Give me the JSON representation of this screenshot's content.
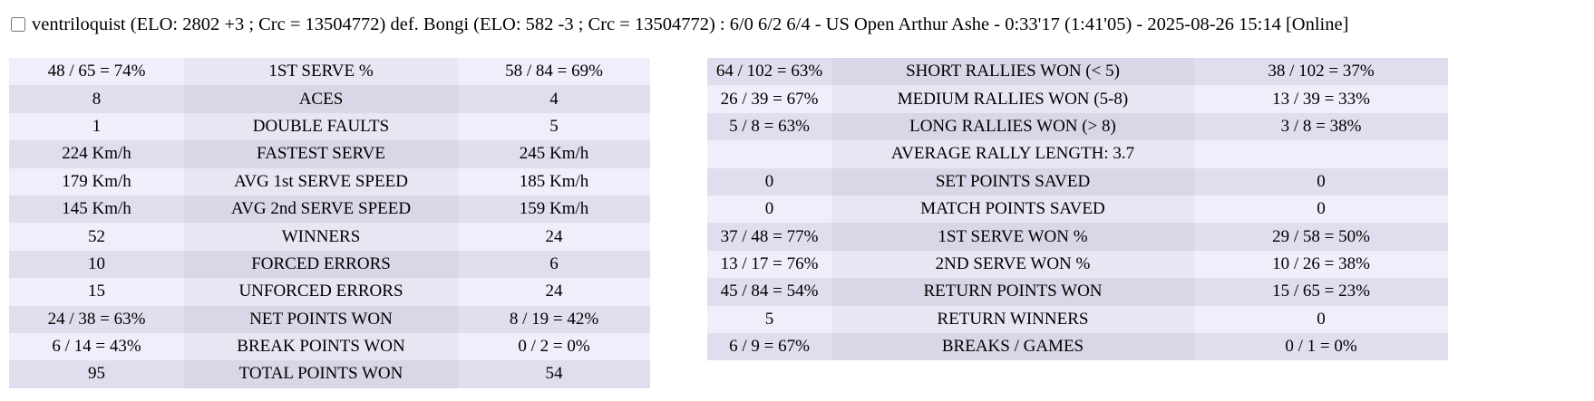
{
  "header": {
    "checkbox_checked": false,
    "match_summary": "ventriloquist (ELO: 2802 +3 ; Crc = 13504772) def. Bongi (ELO: 582 -3 ; Crc = 13504772) : 6/0 6/2 6/4 - US Open Arthur Ashe - 0:33'17 (1:41'05) - 2025-08-26 15:14 [Online]"
  },
  "colors": {
    "row_light_side": "#efeefa",
    "row_light_label": "#e7e6f3",
    "row_dark_side": "#dfdeee",
    "row_dark_label": "#d8d7e7",
    "divider": "#9a9a9a",
    "text": "#000000",
    "background": "#ffffff"
  },
  "left_table": {
    "first_row_shade": "light",
    "rows": [
      {
        "p1": "48 / 65 = 74%",
        "label": "1ST SERVE %",
        "p2": "58 / 84 = 69%"
      },
      {
        "p1": "8",
        "label": "ACES",
        "p2": "4"
      },
      {
        "p1": "1",
        "label": "DOUBLE FAULTS",
        "p2": "5"
      },
      {
        "p1": "224 Km/h",
        "label": "FASTEST SERVE",
        "p2": "245 Km/h"
      },
      {
        "p1": "179 Km/h",
        "label": "AVG 1st SERVE SPEED",
        "p2": "185 Km/h"
      },
      {
        "p1": "145 Km/h",
        "label": "AVG 2nd SERVE SPEED",
        "p2": "159 Km/h"
      },
      {
        "p1": "52",
        "label": "WINNERS",
        "p2": "24"
      },
      {
        "p1": "10",
        "label": "FORCED ERRORS",
        "p2": "6"
      },
      {
        "p1": "15",
        "label": "UNFORCED ERRORS",
        "p2": "24"
      },
      {
        "p1": "24 / 38 = 63%",
        "label": "NET POINTS WON",
        "p2": "8 / 19 = 42%"
      },
      {
        "p1": "6 / 14 = 43%",
        "label": "BREAK POINTS WON",
        "p2": "0 / 2 = 0%"
      },
      {
        "p1": "95",
        "label": "TOTAL POINTS WON",
        "p2": "54"
      }
    ]
  },
  "right_table": {
    "first_row_shade": "dark",
    "rows": [
      {
        "p1": "64 / 102 = 63%",
        "label": "SHORT RALLIES WON (< 5)",
        "p2": "38 / 102 = 37%"
      },
      {
        "p1": "26 / 39 = 67%",
        "label": "MEDIUM RALLIES WON (5-8)",
        "p2": "13 / 39 = 33%"
      },
      {
        "p1": "5 / 8 = 63%",
        "label": "LONG RALLIES WON (> 8)",
        "p2": "3 / 8 = 38%"
      },
      {
        "p1": "",
        "label": "AVERAGE RALLY LENGTH: 3.7",
        "p2": ""
      },
      {
        "p1": "0",
        "label": "SET POINTS SAVED",
        "p2": "0"
      },
      {
        "p1": "0",
        "label": "MATCH POINTS SAVED",
        "p2": "0"
      },
      {
        "p1": "37 / 48 = 77%",
        "label": "1ST SERVE WON %",
        "p2": "29 / 58 = 50%"
      },
      {
        "p1": "13 / 17 = 76%",
        "label": "2ND SERVE WON %",
        "p2": "10 / 26 = 38%"
      },
      {
        "p1": "45 / 84 = 54%",
        "label": "RETURN POINTS WON",
        "p2": "15 / 65 = 23%"
      },
      {
        "p1": "5",
        "label": "RETURN WINNERS",
        "p2": "0"
      },
      {
        "p1": "6 / 9 = 67%",
        "label": "BREAKS / GAMES",
        "p2": "0 / 1 = 0%"
      }
    ]
  }
}
